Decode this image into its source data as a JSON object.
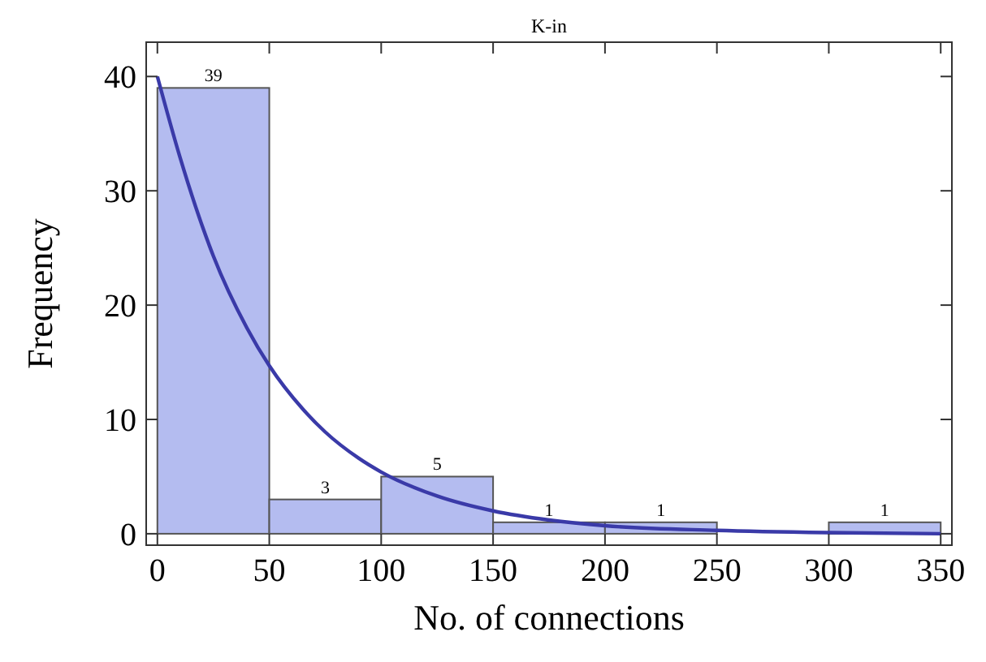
{
  "chart_data": {
    "type": "histogram",
    "title": "K-in",
    "xlabel": "No. of connections",
    "ylabel": "Frequency",
    "bins": [
      0,
      50,
      100,
      150,
      200,
      250,
      300,
      350
    ],
    "values": [
      39,
      3,
      5,
      1,
      1,
      0,
      1
    ],
    "value_labels": [
      "39",
      "3",
      "5",
      "1",
      "1",
      null,
      "1"
    ],
    "color": "#b4bcf0",
    "series": [
      {
        "type": "line",
        "color": "#3a3aa8",
        "x": [
          0,
          10,
          25,
          40,
          50,
          65,
          75,
          90,
          100,
          125,
          150,
          175,
          200,
          250,
          300,
          350
        ],
        "values": [
          40,
          33,
          24.3,
          18,
          14.7,
          10.9,
          8.9,
          6.6,
          5.4,
          3.3,
          2,
          1.2,
          0.7,
          0.3,
          0.1,
          0
        ]
      }
    ],
    "xlim": [
      -5,
      355
    ],
    "xticks": [
      0,
      50,
      100,
      150,
      200,
      250,
      300,
      350
    ],
    "ylim": [
      -1,
      43
    ],
    "yticks": [
      0,
      10,
      20,
      30,
      40
    ],
    "grid": false
  }
}
